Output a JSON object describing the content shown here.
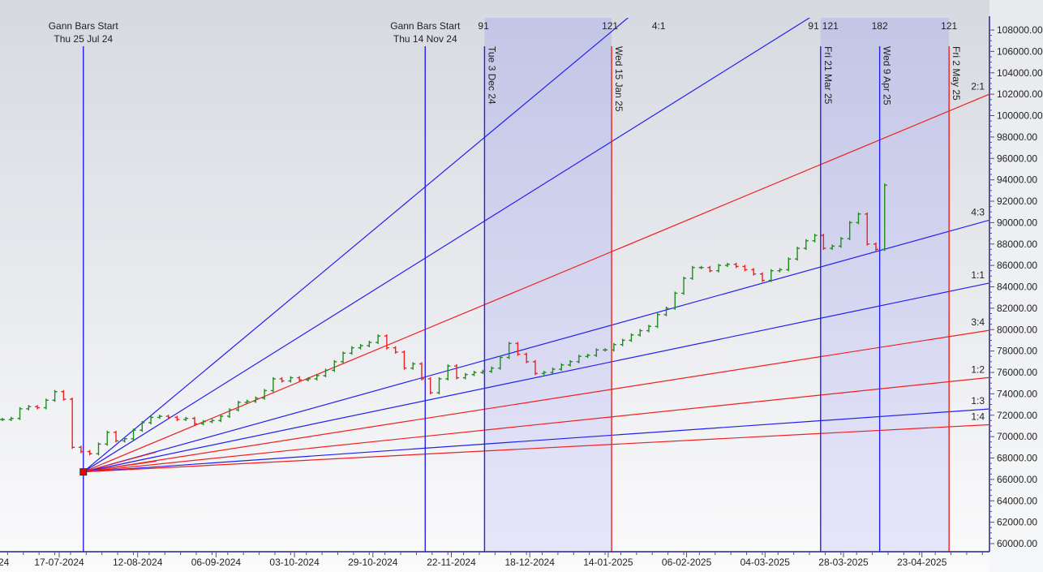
{
  "chart_data": {
    "type": "bar",
    "subtype": "price bars with Gann fan and Gann time cycles",
    "grid": false,
    "y_axis": {
      "position": "right",
      "ylim": [
        60000,
        108000
      ],
      "tick_labels": [
        "60000.00",
        "62000.00",
        "64000.00",
        "66000.00",
        "68000.00",
        "70000.00",
        "72000.00",
        "74000.00",
        "76000.00",
        "78000.00",
        "80000.00",
        "82000.00",
        "84000.00",
        "86000.00",
        "88000.00",
        "90000.00",
        "92000.00",
        "94000.00",
        "96000.00",
        "98000.00",
        "100000.00",
        "102000.00",
        "104000.00",
        "106000.00",
        "108000.00"
      ]
    },
    "x_axis": {
      "tick_labels": [
        {
          "label": "24",
          "date": null
        },
        {
          "label": "17-07-2024",
          "date": "2024-07-17"
        },
        {
          "label": "12-08-2024",
          "date": "2024-08-12"
        },
        {
          "label": "06-09-2024",
          "date": "2024-09-06"
        },
        {
          "label": "03-10-2024",
          "date": "2024-10-03"
        },
        {
          "label": "29-10-2024",
          "date": "2024-10-29"
        },
        {
          "label": "22-11-2024",
          "date": "2024-11-22"
        },
        {
          "label": "18-12-2024",
          "date": "2024-12-18"
        },
        {
          "label": "14-01-2025",
          "date": "2025-01-14"
        },
        {
          "label": "06-02-2025",
          "date": "2025-02-06"
        },
        {
          "label": "04-03-2025",
          "date": "2025-03-04"
        },
        {
          "label": "28-03-2025",
          "date": "2025-03-28"
        },
        {
          "label": "23-04-2025",
          "date": "2025-04-23"
        }
      ]
    },
    "colors": {
      "up": "#1e8c1e",
      "down": "#ee2020",
      "blue_line": "#2020ee",
      "red_line": "#ee2020",
      "axis": "#22229a",
      "cycle_fill": "#c5c8ea",
      "pivot": "#ee0000"
    },
    "closes": [
      71600,
      71700,
      72600,
      72800,
      72700,
      73400,
      74200,
      73500,
      69000,
      68600,
      68400,
      69300,
      70400,
      69600,
      69800,
      70600,
      71300,
      71800,
      71900,
      71800,
      71600,
      71700,
      71200,
      71400,
      71500,
      71900,
      72500,
      73200,
      73300,
      73600,
      74300,
      75400,
      75200,
      75500,
      75300,
      75400,
      75700,
      76200,
      77000,
      77800,
      78300,
      78500,
      78800,
      79400,
      78300,
      77900,
      76400,
      76800,
      75400,
      74100,
      75400,
      76600,
      75500,
      75800,
      76000,
      76100,
      76400,
      77400,
      78700,
      77700,
      77000,
      75900,
      76000,
      76300,
      76700,
      77000,
      77500,
      77600,
      78100,
      78100,
      78600,
      79000,
      79500,
      79900,
      80300,
      81400,
      82000,
      83400,
      84800,
      85800,
      85800,
      85500,
      86000,
      86100,
      85900,
      85600,
      85200,
      84600,
      85500,
      85600,
      86600,
      87600,
      88300,
      88800,
      87600,
      87800,
      88500,
      90000,
      90800,
      88000,
      87500,
      93500
    ],
    "gann_fan": {
      "pivot": {
        "date": "2024-07-25",
        "price": 66700
      },
      "lines": [
        {
          "ratio": "4:1",
          "factor": 4,
          "color": "blue",
          "label": "4:1"
        },
        {
          "ratio": "3:1",
          "factor": 3,
          "color": "blue",
          "label": ""
        },
        {
          "ratio": "2:1",
          "factor": 2,
          "color": "red",
          "label": "2:1"
        },
        {
          "ratio": "4:3",
          "factor": 1.3333,
          "color": "blue",
          "label": "4:3"
        },
        {
          "ratio": "1:1",
          "factor": 1,
          "color": "blue",
          "label": "1:1"
        },
        {
          "ratio": "3:4",
          "factor": 0.75,
          "color": "red",
          "label": "3:4"
        },
        {
          "ratio": "1:2",
          "factor": 0.5,
          "color": "red",
          "label": "1:2"
        },
        {
          "ratio": "1:3",
          "factor": 0.3333,
          "color": "blue",
          "label": "1:3"
        },
        {
          "ratio": "1:4",
          "factor": 0.25,
          "color": "red",
          "label": "1:4"
        }
      ]
    },
    "gann_bars_start": [
      {
        "date": "2024-07-25",
        "title": "Gann Bars Start",
        "subtitle": "Thu 25 Jul 24"
      },
      {
        "date": "2024-11-14",
        "title": "Gann Bars Start",
        "subtitle": "Thu 14 Nov 24"
      }
    ],
    "cycle_regions": [
      {
        "start": "2024-12-03",
        "end": "2025-01-15"
      },
      {
        "start": "2025-03-21",
        "end": "2025-05-02"
      }
    ],
    "cycle_lines": [
      {
        "date": "2024-12-03",
        "label": "Tue 3 Dec 24",
        "color": "blue",
        "count": "91",
        "count_align": "start"
      },
      {
        "date": "2025-01-15",
        "label": "Wed 15 Jan 25",
        "color": "red",
        "count": "121",
        "count_align": "end"
      },
      {
        "date": "2025-03-21",
        "label": "Fri 21 Mar 25",
        "color": "blue",
        "count": "91",
        "count_align": "end"
      },
      {
        "date": "2025-03-21",
        "label": "",
        "color": "none",
        "count": "121",
        "count_align": "start"
      },
      {
        "date": "2025-04-09",
        "label": "Wed 9 Apr 25",
        "color": "blue",
        "count": "182",
        "count_align": "middle"
      },
      {
        "date": "2025-05-02",
        "label": "Fri 2 May 25",
        "color": "red",
        "count": "121",
        "count_align": "middle"
      }
    ]
  }
}
